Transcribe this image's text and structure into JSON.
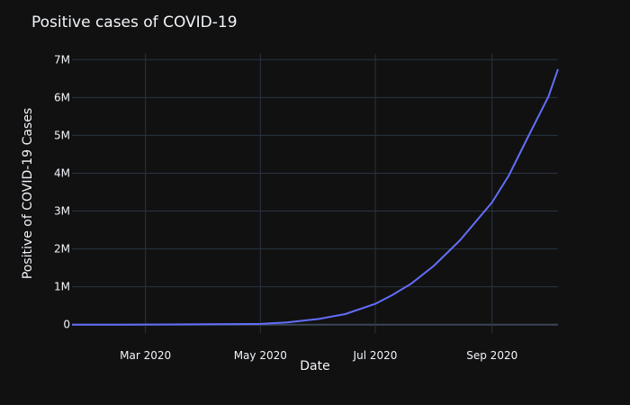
{
  "chart_data": {
    "type": "line",
    "title": "Positive cases of COVID-19",
    "xlabel": "Date",
    "ylabel": "Positive of COVID-19 Cases",
    "x_ticks": [
      {
        "date": "2020-03-01",
        "label": "Mar 2020"
      },
      {
        "date": "2020-05-01",
        "label": "May 2020"
      },
      {
        "date": "2020-07-01",
        "label": "Jul 2020"
      },
      {
        "date": "2020-09-01",
        "label": "Sep 2020"
      }
    ],
    "y_ticks": [
      {
        "value": 0,
        "label": "0"
      },
      {
        "value": 1000000,
        "label": "1M"
      },
      {
        "value": 2000000,
        "label": "2M"
      },
      {
        "value": 3000000,
        "label": "3M"
      },
      {
        "value": 4000000,
        "label": "4M"
      },
      {
        "value": 5000000,
        "label": "5M"
      },
      {
        "value": 6000000,
        "label": "6M"
      },
      {
        "value": 7000000,
        "label": "7M"
      }
    ],
    "xlim": [
      "2020-01-22",
      "2020-10-06"
    ],
    "ylim": [
      -220000,
      7150000
    ],
    "grid": true,
    "line_color": "#636efa",
    "series": [
      {
        "x": [
          "2020-01-22",
          "2020-02-15",
          "2020-03-15",
          "2020-04-01",
          "2020-04-15",
          "2020-05-01",
          "2020-05-15",
          "2020-06-01",
          "2020-06-15",
          "2020-07-01",
          "2020-07-10",
          "2020-07-20",
          "2020-08-01",
          "2020-08-15",
          "2020-09-01",
          "2020-09-10",
          "2020-09-20",
          "2020-10-01",
          "2020-10-06"
        ],
        "y": [
          1000,
          2000,
          5000,
          10000,
          15000,
          20000,
          60000,
          150000,
          280000,
          550000,
          780000,
          1080000,
          1550000,
          2230000,
          3230000,
          3950000,
          4950000,
          6030000,
          6750000
        ]
      }
    ]
  }
}
